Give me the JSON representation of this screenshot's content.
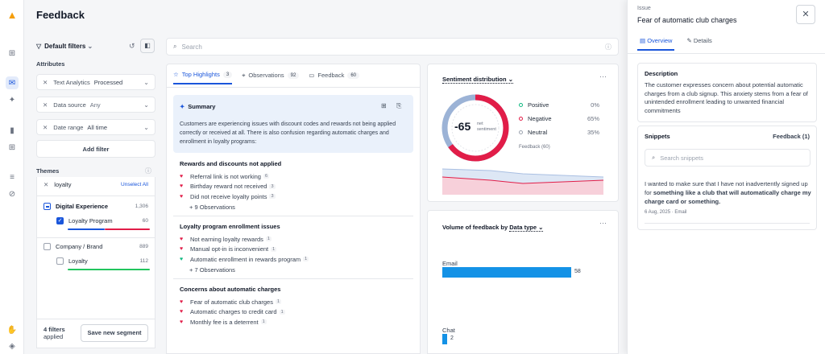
{
  "header": {
    "title": "Feedback"
  },
  "colors": {
    "accent": "#1a56db",
    "negative": "#e11d48",
    "positive": "#10b981",
    "neutral": "#9ca3af",
    "bar": "#1492e6"
  },
  "filters": {
    "default_filters": "Default filters",
    "attributes_label": "Attributes",
    "items": [
      {
        "label": "Text Analytics",
        "value": "Processed"
      },
      {
        "label": "Data source",
        "value": "Any"
      },
      {
        "label": "Date range",
        "value": "All time"
      }
    ],
    "add_filter": "Add filter",
    "themes_label": "Themes",
    "theme_search_value": "loyalty",
    "unselect_all": "Unselect All",
    "theme_groups": [
      {
        "label": "Digital Experience",
        "count": "1,306",
        "child": {
          "label": "Loyalty Program",
          "count": "60"
        }
      },
      {
        "label": "Company / Brand",
        "count": "889",
        "child": {
          "label": "Loyalty",
          "count": "112"
        }
      }
    ],
    "filters_applied_count": "4 filters",
    "filters_applied_suffix": "applied",
    "save_segment": "Save new segment"
  },
  "search": {
    "placeholder": "Search"
  },
  "highlights": {
    "tabs": [
      {
        "label": "Top Highlights",
        "count": "3"
      },
      {
        "label": "Observations",
        "count": "92"
      },
      {
        "label": "Feedback",
        "count": "60"
      }
    ],
    "summary_title": "Summary",
    "summary_text": "Customers are experiencing issues with discount codes and rewards not being applied correctly or received at all. There is also confusion regarding automatic charges and enrollment in loyalty programs:",
    "groups": [
      {
        "title": "Rewards and discounts not applied",
        "items": [
          {
            "text": "Referral link is not working",
            "n": "6"
          },
          {
            "text": "Birthday reward not received",
            "n": "3"
          },
          {
            "text": "Did not receive loyalty points",
            "n": "3"
          }
        ],
        "more": "+ 9 Observations"
      },
      {
        "title": "Loyalty program enrollment issues",
        "items": [
          {
            "text": "Not earning loyalty rewards",
            "n": "1"
          },
          {
            "text": "Manual opt-in is inconvenient",
            "n": "1"
          },
          {
            "text": "Automatic enrollment in rewards program",
            "n": "1"
          }
        ],
        "more": "+ 7 Observations"
      },
      {
        "title": "Concerns about automatic charges",
        "items": [
          {
            "text": "Fear of automatic club charges",
            "n": "1"
          },
          {
            "text": "Automatic charges to credit card",
            "n": "1"
          },
          {
            "text": "Monthly fee is a deterrent",
            "n": "1"
          }
        ],
        "more": ""
      }
    ]
  },
  "sentiment": {
    "title": "Sentiment distribution",
    "score": "-65",
    "score_label_1": "net",
    "score_label_2": "sentiment",
    "legend": [
      {
        "label": "Positive",
        "pct": "0%"
      },
      {
        "label": "Negative",
        "pct": "65%"
      },
      {
        "label": "Neutral",
        "pct": "35%"
      }
    ],
    "footnote": "Feedback (60)"
  },
  "volume": {
    "title_prefix": "Volume of feedback by",
    "title_dim": "Data type",
    "bars": [
      {
        "label": "Email",
        "value": 58
      },
      {
        "label": "Chat",
        "value": 2
      }
    ]
  },
  "panel": {
    "eyebrow": "Issue",
    "title": "Fear of automatic club charges",
    "tabs": [
      "Overview",
      "Details"
    ],
    "description_label": "Description",
    "description": "The customer expresses concern about potential automatic charges from a club signup. This anxiety stems from a fear of unintended enrollment leading to unwanted financial commitments",
    "snippets_label": "Snippets",
    "snippets_source": "Feedback (1)",
    "snippet_search_placeholder": "Search snippets",
    "snippet_text_before": "I wanted to make sure that I have not inadvertently signed up for ",
    "snippet_text_bold": "something like a club that will automatically charge my charge card or something.",
    "snippet_meta": "6 Aug, 2025 · Email"
  }
}
